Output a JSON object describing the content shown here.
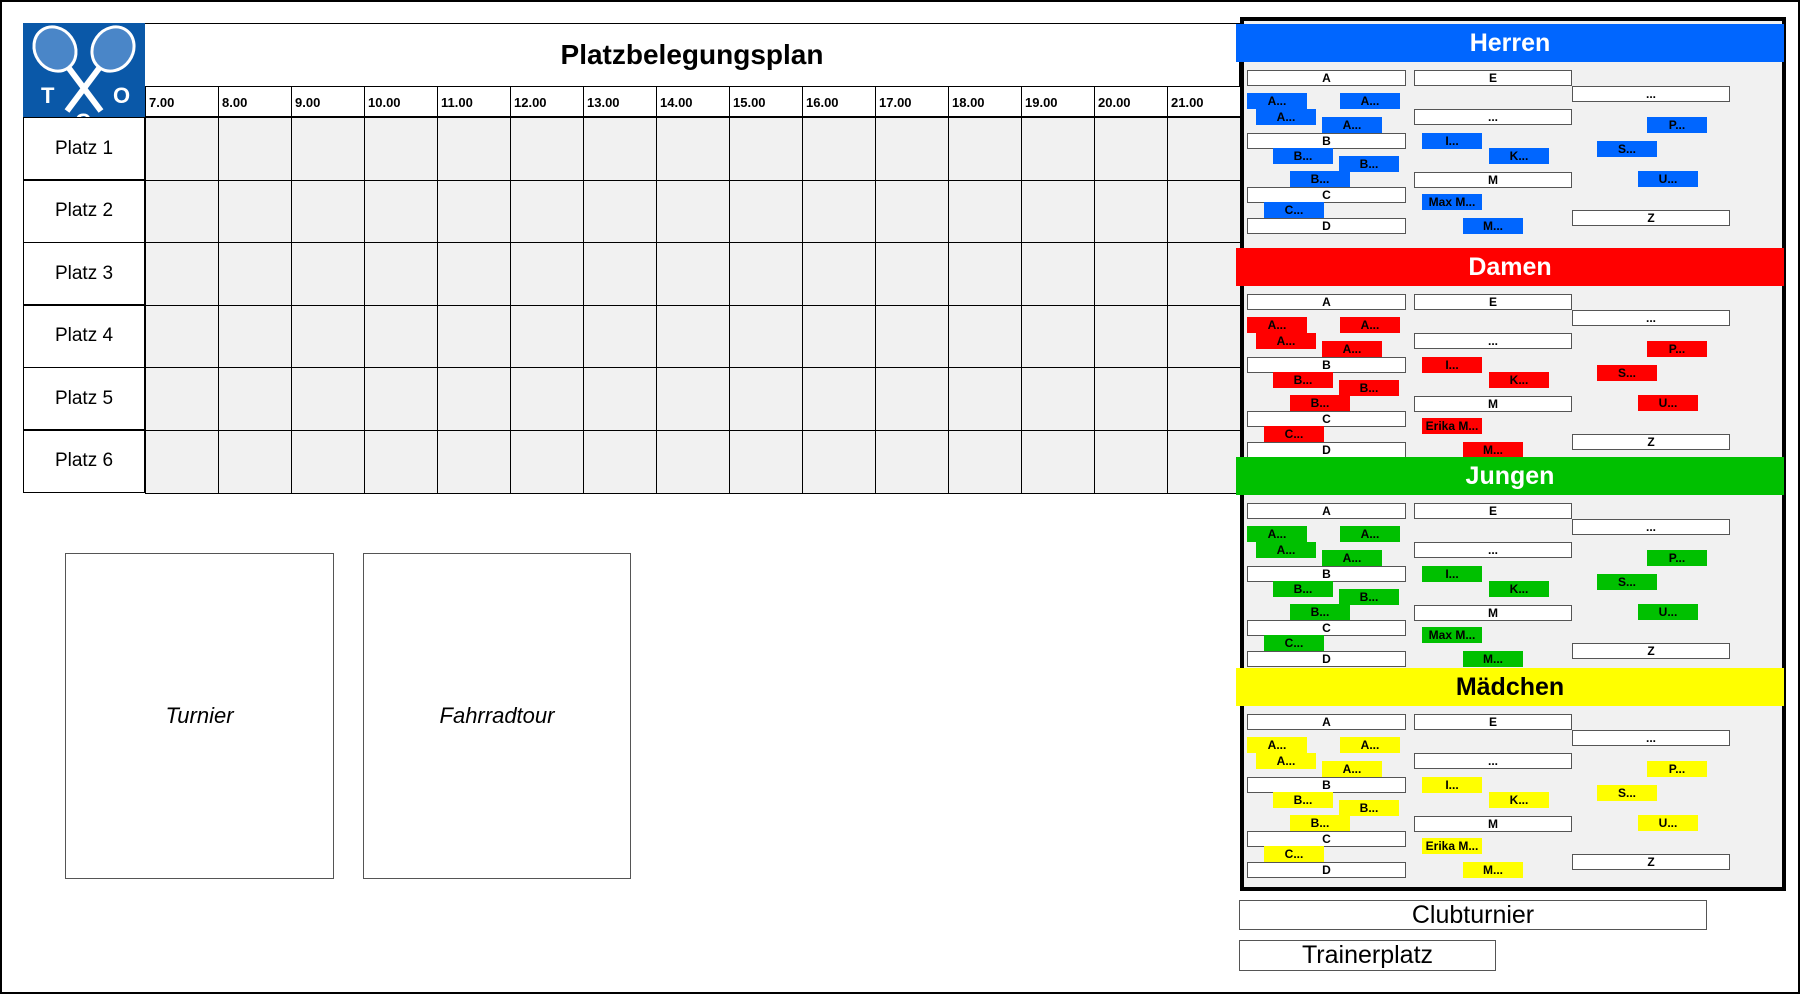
{
  "title": "Platzbelegungsplan",
  "logo": {
    "letters": [
      "T",
      "O",
      "C"
    ],
    "color": "#0a58a8"
  },
  "hours": [
    "7.00",
    "8.00",
    "9.00",
    "10.00",
    "11.00",
    "12.00",
    "13.00",
    "14.00",
    "15.00",
    "16.00",
    "17.00",
    "18.00",
    "19.00",
    "20.00",
    "21.00"
  ],
  "courts": [
    "Platz 1",
    "Platz 2",
    "Platz 3",
    "Platz 4",
    "Platz 5",
    "Platz 6"
  ],
  "events": [
    "Turnier",
    "Fahrradtour"
  ],
  "sections": [
    {
      "title": "Herren",
      "color": "#0066ff",
      "text_color": "#ffffff",
      "boxes": [
        "A",
        "E",
        "...",
        "...",
        "B",
        "M",
        "C",
        "Z",
        "D"
      ],
      "chips": [
        "A...",
        "A...",
        "A...",
        "A...",
        "P...",
        "I...",
        "S...",
        "B...",
        "K...",
        "B...",
        "B...",
        "U...",
        "Max M...",
        "C...",
        "M..."
      ]
    },
    {
      "title": "Damen",
      "color": "#ff0000",
      "text_color": "#ffffff",
      "boxes": [
        "A",
        "E",
        "...",
        "...",
        "B",
        "M",
        "C",
        "Z",
        "D"
      ],
      "chips": [
        "A...",
        "A...",
        "A...",
        "A...",
        "P...",
        "I...",
        "S...",
        "B...",
        "K...",
        "B...",
        "B...",
        "U...",
        "Erika M...",
        "C...",
        "M..."
      ]
    },
    {
      "title": "Jungen",
      "color": "#00c000",
      "text_color": "#ffffff",
      "boxes": [
        "A",
        "E",
        "...",
        "...",
        "B",
        "M",
        "C",
        "Z",
        "D"
      ],
      "chips": [
        "A...",
        "A...",
        "A...",
        "A...",
        "P...",
        "I...",
        "S...",
        "B...",
        "K...",
        "B...",
        "B...",
        "U...",
        "Max M...",
        "C...",
        "M..."
      ]
    },
    {
      "title": "Mädchen",
      "color": "#ffff00",
      "text_color": "#000000",
      "boxes": [
        "A",
        "E",
        "...",
        "...",
        "B",
        "M",
        "C",
        "Z",
        "D"
      ],
      "chips": [
        "A...",
        "A...",
        "A...",
        "A...",
        "P...",
        "I...",
        "S...",
        "B...",
        "K...",
        "B...",
        "B...",
        "U...",
        "Erika M...",
        "C...",
        "M..."
      ]
    }
  ],
  "bottom": {
    "clubturnier": "Clubturnier",
    "trainerplatz": "Trainerplatz"
  }
}
